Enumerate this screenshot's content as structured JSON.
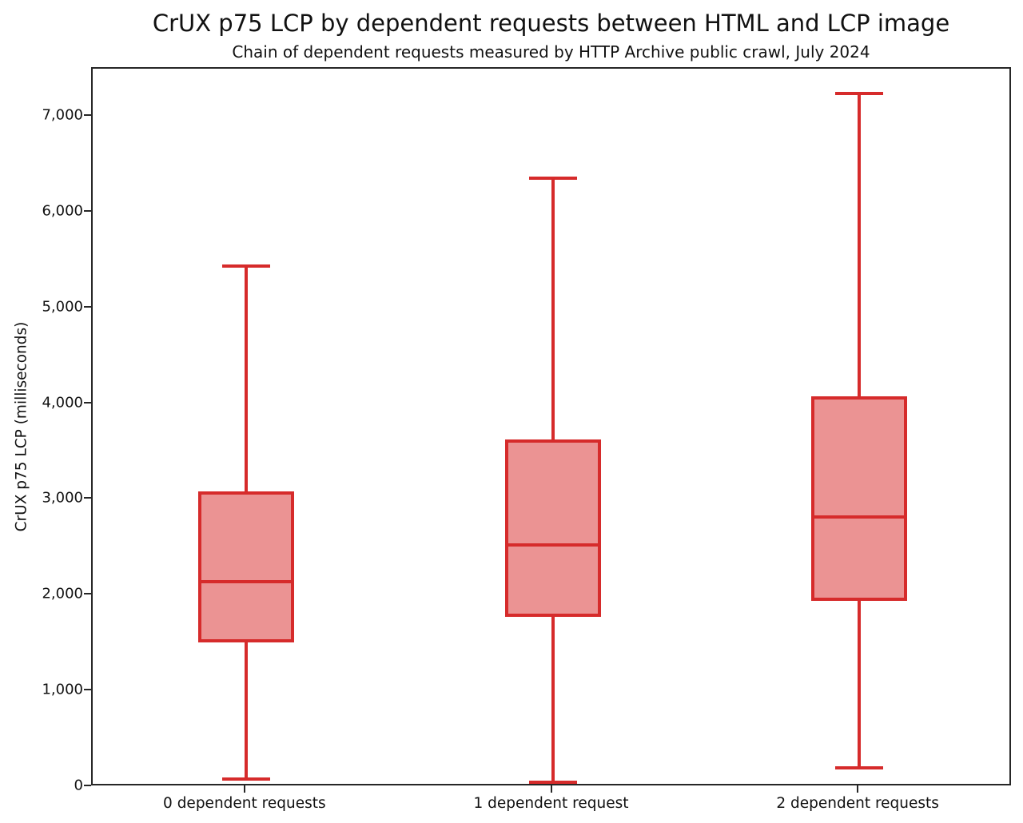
{
  "chart_data": {
    "type": "boxplot",
    "title": "CrUX p75 LCP by dependent requests between HTML and LCP image",
    "subtitle": "Chain of dependent requests measured by HTTP Archive public crawl, July 2024",
    "ylabel": "CrUX p75 LCP (milliseconds)",
    "xlabel": "",
    "categories": [
      "0 dependent requests",
      "1 dependent request",
      "2 dependent requests"
    ],
    "series": [
      {
        "name": "0 dependent requests",
        "whisker_low": 80,
        "q1": 1530,
        "median": 2140,
        "q3": 3070,
        "whisker_high": 5440
      },
      {
        "name": "1 dependent request",
        "whisker_low": 50,
        "q1": 1790,
        "median": 2530,
        "q3": 3610,
        "whisker_high": 6360
      },
      {
        "name": "2 dependent requests",
        "whisker_low": 200,
        "q1": 1960,
        "median": 2820,
        "q3": 4060,
        "whisker_high": 7240
      }
    ],
    "ylim": [
      0,
      7500
    ],
    "yticks": [
      0,
      1000,
      2000,
      3000,
      4000,
      5000,
      6000,
      7000
    ],
    "ytick_labels": [
      "0",
      "1,000",
      "2,000",
      "3,000",
      "4,000",
      "5,000",
      "6,000",
      "7,000"
    ],
    "grid": false,
    "legend": null,
    "colors": {
      "box_edge": "#d62b2b",
      "box_fill": "#eb9393",
      "spine": "#262626",
      "text": "#111111"
    }
  }
}
